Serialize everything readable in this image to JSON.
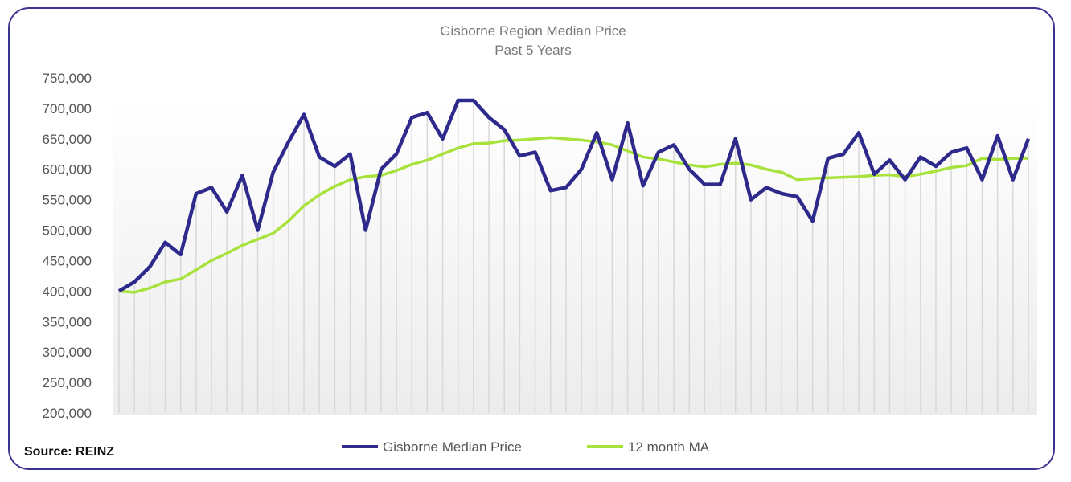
{
  "chart_data": {
    "type": "line",
    "title": "Gisborne Region Median Price",
    "subtitle": "Past 5 Years",
    "source": "Source: REINZ",
    "xlabel": "",
    "ylabel": "",
    "ylim": [
      200000,
      750000
    ],
    "yticks": [
      "200,000",
      "250,000",
      "300,000",
      "350,000",
      "400,000",
      "450,000",
      "500,000",
      "550,000",
      "600,000",
      "650,000",
      "700,000",
      "750,000"
    ],
    "ytick_values": [
      200000,
      250000,
      300000,
      350000,
      400000,
      450000,
      500000,
      550000,
      600000,
      650000,
      700000,
      750000
    ],
    "grid": "vertical",
    "legend_position": "bottom",
    "series": [
      {
        "name": "Gisborne Median Price",
        "color": "#2e2a8c",
        "values": [
          400000,
          415000,
          440000,
          480000,
          460000,
          560000,
          570000,
          530000,
          590000,
          500000,
          595000,
          645000,
          690000,
          620000,
          605000,
          625000,
          500000,
          600000,
          625000,
          685000,
          693000,
          650000,
          713000,
          713000,
          685000,
          665000,
          622000,
          628000,
          565000,
          570000,
          600000,
          660000,
          583000,
          676000,
          573000,
          628000,
          640000,
          600000,
          575000,
          575000,
          650000,
          550000,
          570000,
          560000,
          555000,
          515000,
          618000,
          625000,
          660000,
          592000,
          615000,
          583000,
          620000,
          605000,
          628000,
          635000,
          583000,
          655000,
          583000,
          650000
        ]
      },
      {
        "name": "12 month MA",
        "color": "#a8e23c",
        "values": [
          400000,
          398000,
          405000,
          415000,
          420000,
          435000,
          450000,
          462000,
          475000,
          485000,
          495000,
          515000,
          540000,
          558000,
          572000,
          583000,
          588000,
          590000,
          598000,
          608000,
          615000,
          625000,
          635000,
          642000,
          643000,
          647000,
          648000,
          650000,
          652000,
          650000,
          648000,
          645000,
          640000,
          630000,
          620000,
          617000,
          612000,
          607000,
          604000,
          608000,
          610000,
          607000,
          600000,
          595000,
          583000,
          585000,
          586000,
          587000,
          588000,
          590000,
          591000,
          588000,
          592000,
          597000,
          603000,
          606000,
          618000,
          616000,
          618000,
          618000
        ]
      }
    ]
  }
}
